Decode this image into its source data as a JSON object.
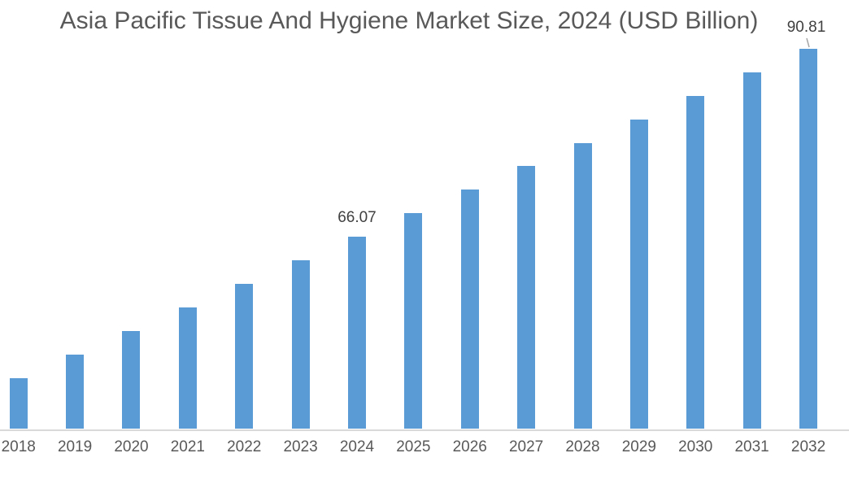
{
  "chart_data": {
    "type": "bar",
    "title": "Asia Pacific Tissue And Hygiene Market Size, 2024 (USD Billion)",
    "xlabel": "",
    "ylabel": "",
    "categories": [
      "2018",
      "2019",
      "2020",
      "2021",
      "2022",
      "2023",
      "2024",
      "2025",
      "2026",
      "2027",
      "2028",
      "2029",
      "2030",
      "2031",
      "2032"
    ],
    "values": [
      47.52,
      50.61,
      53.7,
      56.79,
      59.89,
      62.98,
      66.07,
      69.16,
      72.26,
      75.35,
      78.44,
      81.53,
      84.63,
      87.72,
      90.81
    ],
    "labeled_points": [
      {
        "category": "2024",
        "label": "66.07",
        "moved": false
      },
      {
        "category": "2032",
        "label": "90.81",
        "moved": true
      }
    ],
    "ylim": [
      40.9,
      95
    ],
    "grid": false,
    "legend": "none",
    "colors": {
      "bar": "#5b9bd5",
      "title_text": "#595959",
      "axis_text": "#595959",
      "data_label_text": "#404040",
      "axis_line": "#d9d9d9",
      "leader_line": "#a6a6a6"
    }
  }
}
